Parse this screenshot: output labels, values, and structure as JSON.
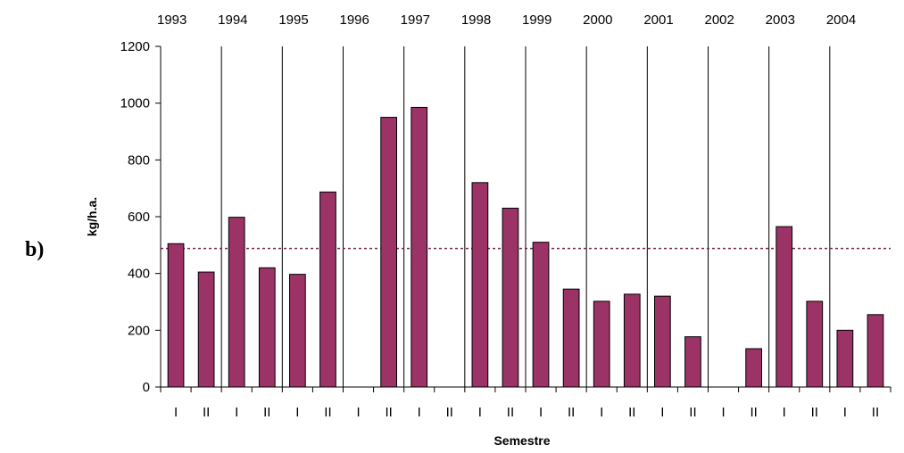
{
  "panel_label": "b)",
  "chart_data": {
    "type": "bar",
    "title": "",
    "xlabel": "Semestre",
    "ylabel": "kg/h.a.",
    "ylim": [
      0,
      1200
    ],
    "yticks": [
      0,
      200,
      400,
      600,
      800,
      1000,
      1200
    ],
    "grid": "vertical year separators",
    "years": [
      "1993",
      "1994",
      "1995",
      "1996",
      "1997",
      "1998",
      "1999",
      "2000",
      "2001",
      "2002",
      "2003",
      "2004"
    ],
    "categories": [
      "I",
      "II",
      "I",
      "II",
      "I",
      "II",
      "I",
      "II",
      "I",
      "II",
      "I",
      "II",
      "I",
      "II",
      "I",
      "II",
      "I",
      "II",
      "I",
      "II",
      "I",
      "II",
      "I",
      "II"
    ],
    "values": [
      505,
      405,
      598,
      420,
      397,
      687,
      null,
      950,
      985,
      null,
      720,
      630,
      510,
      345,
      302,
      327,
      320,
      177,
      null,
      135,
      565,
      302,
      200,
      255
    ],
    "reference_line": {
      "value": 488,
      "style": "dotted"
    },
    "colors": {
      "bar": "#9b3366",
      "reference_line": "#7a2048"
    }
  }
}
